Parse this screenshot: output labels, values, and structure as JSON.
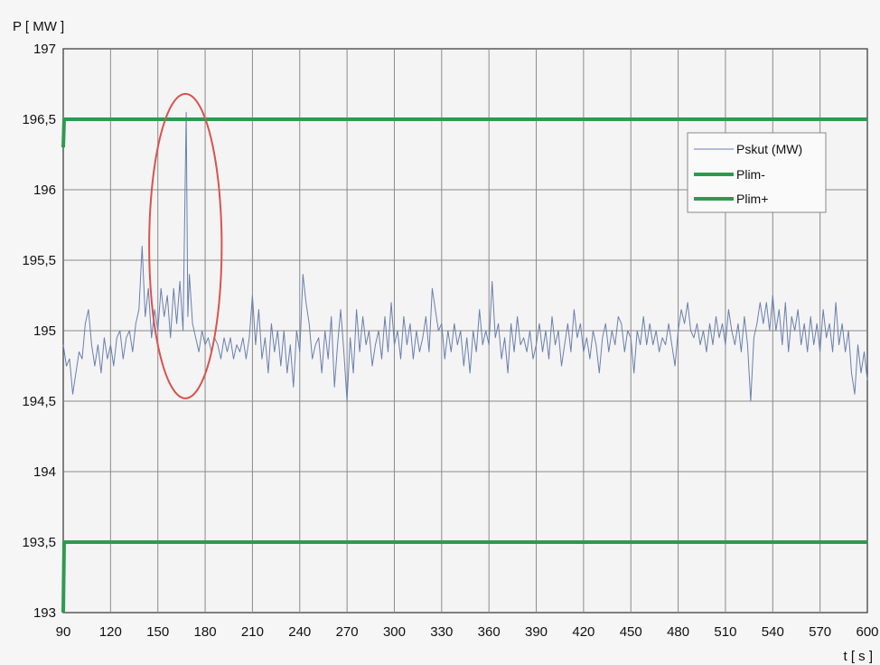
{
  "chart_data": {
    "type": "line",
    "xlabel": "t [ s ]",
    "ylabel": "P [ MW ]",
    "xlim": [
      90,
      600
    ],
    "ylim": [
      193,
      197
    ],
    "x_ticks": [
      90,
      120,
      150,
      180,
      210,
      240,
      270,
      300,
      330,
      360,
      390,
      420,
      450,
      480,
      510,
      540,
      570,
      600
    ],
    "x_tick_labels": [
      "90",
      "120",
      "150",
      "180",
      "210",
      "240",
      "270",
      "300",
      "330",
      "360",
      "390",
      "420",
      "450",
      "480",
      "510",
      "540",
      "570",
      "600"
    ],
    "y_ticks": [
      193,
      193.5,
      194,
      194.5,
      195,
      195.5,
      196,
      196.5,
      197
    ],
    "y_tick_labels": [
      "193",
      "193,5",
      "194",
      "194,5",
      "195",
      "195,5",
      "196",
      "196,5",
      "197"
    ],
    "grid": true,
    "legend_position": "top-right",
    "series": [
      {
        "name": "Pskut (MW)",
        "color": "#6a7fae",
        "points": [
          [
            90,
            194.9
          ],
          [
            92,
            194.75
          ],
          [
            94,
            194.8
          ],
          [
            96,
            194.55
          ],
          [
            98,
            194.7
          ],
          [
            100,
            194.85
          ],
          [
            102,
            194.8
          ],
          [
            104,
            195.05
          ],
          [
            106,
            195.15
          ],
          [
            108,
            194.9
          ],
          [
            110,
            194.75
          ],
          [
            112,
            194.9
          ],
          [
            114,
            194.7
          ],
          [
            116,
            194.95
          ],
          [
            118,
            194.8
          ],
          [
            120,
            194.9
          ],
          [
            122,
            194.75
          ],
          [
            124,
            194.95
          ],
          [
            126,
            195.0
          ],
          [
            128,
            194.8
          ],
          [
            130,
            194.95
          ],
          [
            132,
            195.0
          ],
          [
            134,
            194.85
          ],
          [
            136,
            195.05
          ],
          [
            138,
            195.15
          ],
          [
            140,
            195.6
          ],
          [
            142,
            195.1
          ],
          [
            144,
            195.3
          ],
          [
            146,
            194.95
          ],
          [
            148,
            195.15
          ],
          [
            150,
            195.0
          ],
          [
            152,
            195.3
          ],
          [
            154,
            195.1
          ],
          [
            156,
            195.25
          ],
          [
            158,
            194.95
          ],
          [
            160,
            195.3
          ],
          [
            162,
            195.05
          ],
          [
            164,
            195.35
          ],
          [
            166,
            195.0
          ],
          [
            168,
            196.55
          ],
          [
            169,
            195.1
          ],
          [
            170,
            195.4
          ],
          [
            172,
            195.05
          ],
          [
            174,
            194.95
          ],
          [
            176,
            194.85
          ],
          [
            178,
            195.0
          ],
          [
            180,
            194.9
          ],
          [
            182,
            194.95
          ],
          [
            184,
            194.85
          ],
          [
            186,
            194.95
          ],
          [
            188,
            194.9
          ],
          [
            190,
            194.8
          ],
          [
            192,
            194.95
          ],
          [
            194,
            194.85
          ],
          [
            196,
            194.95
          ],
          [
            198,
            194.8
          ],
          [
            200,
            194.9
          ],
          [
            202,
            194.85
          ],
          [
            204,
            194.95
          ],
          [
            206,
            194.8
          ],
          [
            208,
            194.95
          ],
          [
            210,
            195.25
          ],
          [
            212,
            194.9
          ],
          [
            214,
            195.15
          ],
          [
            216,
            194.8
          ],
          [
            218,
            194.95
          ],
          [
            220,
            194.7
          ],
          [
            222,
            195.05
          ],
          [
            224,
            194.85
          ],
          [
            226,
            195.0
          ],
          [
            228,
            194.75
          ],
          [
            230,
            195.0
          ],
          [
            232,
            194.7
          ],
          [
            234,
            194.9
          ],
          [
            236,
            194.6
          ],
          [
            238,
            195.0
          ],
          [
            240,
            194.85
          ],
          [
            242,
            195.4
          ],
          [
            244,
            195.2
          ],
          [
            246,
            195.05
          ],
          [
            248,
            194.8
          ],
          [
            250,
            194.9
          ],
          [
            252,
            194.95
          ],
          [
            254,
            194.7
          ],
          [
            256,
            195.0
          ],
          [
            258,
            194.8
          ],
          [
            260,
            195.1
          ],
          [
            262,
            194.6
          ],
          [
            264,
            194.9
          ],
          [
            266,
            195.15
          ],
          [
            268,
            194.85
          ],
          [
            270,
            194.5
          ],
          [
            272,
            194.95
          ],
          [
            274,
            194.7
          ],
          [
            276,
            195.15
          ],
          [
            278,
            194.85
          ],
          [
            280,
            195.1
          ],
          [
            282,
            194.9
          ],
          [
            284,
            195.0
          ],
          [
            286,
            194.75
          ],
          [
            288,
            194.9
          ],
          [
            290,
            195.0
          ],
          [
            292,
            194.8
          ],
          [
            294,
            195.1
          ],
          [
            296,
            194.85
          ],
          [
            298,
            195.2
          ],
          [
            300,
            194.9
          ],
          [
            302,
            195.0
          ],
          [
            304,
            194.8
          ],
          [
            306,
            195.1
          ],
          [
            308,
            194.9
          ],
          [
            310,
            195.05
          ],
          [
            312,
            194.8
          ],
          [
            314,
            195.0
          ],
          [
            316,
            194.85
          ],
          [
            318,
            194.95
          ],
          [
            320,
            195.1
          ],
          [
            322,
            194.85
          ],
          [
            324,
            195.3
          ],
          [
            326,
            195.15
          ],
          [
            328,
            195.0
          ],
          [
            330,
            195.05
          ],
          [
            332,
            194.8
          ],
          [
            334,
            195.0
          ],
          [
            336,
            194.85
          ],
          [
            338,
            195.05
          ],
          [
            340,
            194.9
          ],
          [
            342,
            195.0
          ],
          [
            344,
            194.75
          ],
          [
            346,
            194.95
          ],
          [
            348,
            194.7
          ],
          [
            350,
            195.0
          ],
          [
            352,
            194.85
          ],
          [
            354,
            195.15
          ],
          [
            356,
            194.9
          ],
          [
            358,
            195.0
          ],
          [
            360,
            194.9
          ],
          [
            362,
            195.35
          ],
          [
            364,
            194.95
          ],
          [
            366,
            195.05
          ],
          [
            368,
            194.8
          ],
          [
            370,
            194.95
          ],
          [
            372,
            194.7
          ],
          [
            374,
            195.05
          ],
          [
            376,
            194.85
          ],
          [
            378,
            195.1
          ],
          [
            380,
            194.9
          ],
          [
            382,
            194.95
          ],
          [
            384,
            194.85
          ],
          [
            386,
            195.0
          ],
          [
            388,
            194.8
          ],
          [
            390,
            194.9
          ],
          [
            392,
            195.05
          ],
          [
            394,
            194.85
          ],
          [
            396,
            195.0
          ],
          [
            398,
            194.8
          ],
          [
            400,
            195.1
          ],
          [
            402,
            194.9
          ],
          [
            404,
            195.0
          ],
          [
            406,
            194.75
          ],
          [
            408,
            194.9
          ],
          [
            410,
            195.05
          ],
          [
            412,
            194.85
          ],
          [
            414,
            195.15
          ],
          [
            416,
            194.95
          ],
          [
            418,
            195.05
          ],
          [
            420,
            194.85
          ],
          [
            422,
            194.95
          ],
          [
            424,
            194.8
          ],
          [
            426,
            195.0
          ],
          [
            428,
            194.9
          ],
          [
            430,
            194.7
          ],
          [
            432,
            194.95
          ],
          [
            434,
            195.05
          ],
          [
            436,
            194.85
          ],
          [
            438,
            195.0
          ],
          [
            440,
            194.9
          ],
          [
            442,
            195.1
          ],
          [
            444,
            195.05
          ],
          [
            446,
            194.85
          ],
          [
            448,
            195.0
          ],
          [
            450,
            194.95
          ],
          [
            452,
            194.7
          ],
          [
            454,
            195.0
          ],
          [
            456,
            194.9
          ],
          [
            458,
            195.1
          ],
          [
            460,
            194.9
          ],
          [
            462,
            195.05
          ],
          [
            464,
            194.9
          ],
          [
            466,
            195.0
          ],
          [
            468,
            194.85
          ],
          [
            470,
            194.95
          ],
          [
            472,
            194.9
          ],
          [
            474,
            195.05
          ],
          [
            476,
            194.9
          ],
          [
            478,
            194.75
          ],
          [
            480,
            195.0
          ],
          [
            482,
            195.15
          ],
          [
            484,
            195.05
          ],
          [
            486,
            195.2
          ],
          [
            488,
            195.0
          ],
          [
            490,
            194.95
          ],
          [
            492,
            195.05
          ],
          [
            494,
            194.9
          ],
          [
            496,
            195.0
          ],
          [
            498,
            194.85
          ],
          [
            500,
            195.05
          ],
          [
            502,
            194.9
          ],
          [
            504,
            195.1
          ],
          [
            506,
            194.95
          ],
          [
            508,
            195.05
          ],
          [
            510,
            194.9
          ],
          [
            512,
            195.15
          ],
          [
            514,
            195.0
          ],
          [
            516,
            194.9
          ],
          [
            518,
            195.05
          ],
          [
            520,
            194.85
          ],
          [
            522,
            195.1
          ],
          [
            524,
            194.9
          ],
          [
            526,
            194.5
          ],
          [
            528,
            194.95
          ],
          [
            530,
            195.05
          ],
          [
            532,
            195.2
          ],
          [
            534,
            195.05
          ],
          [
            536,
            195.2
          ],
          [
            538,
            195.0
          ],
          [
            540,
            195.25
          ],
          [
            542,
            195.0
          ],
          [
            544,
            195.15
          ],
          [
            546,
            194.9
          ],
          [
            548,
            195.2
          ],
          [
            550,
            194.85
          ],
          [
            552,
            195.1
          ],
          [
            554,
            195.0
          ],
          [
            556,
            195.15
          ],
          [
            558,
            194.9
          ],
          [
            560,
            195.05
          ],
          [
            562,
            194.85
          ],
          [
            564,
            195.1
          ],
          [
            566,
            194.9
          ],
          [
            568,
            195.05
          ],
          [
            570,
            194.85
          ],
          [
            572,
            195.15
          ],
          [
            574,
            194.95
          ],
          [
            576,
            195.05
          ],
          [
            578,
            194.85
          ],
          [
            580,
            195.2
          ],
          [
            582,
            194.9
          ],
          [
            584,
            195.05
          ],
          [
            586,
            194.85
          ],
          [
            588,
            195.0
          ],
          [
            590,
            194.7
          ],
          [
            592,
            194.55
          ],
          [
            594,
            194.9
          ],
          [
            596,
            194.7
          ],
          [
            598,
            194.85
          ],
          [
            600,
            194.65
          ]
        ]
      },
      {
        "name": "Plim-",
        "color": "#2e9a4e",
        "points": [
          [
            90,
            193
          ],
          [
            90.6,
            193.5
          ],
          [
            600,
            193.5
          ]
        ]
      },
      {
        "name": "Plim+",
        "color": "#2e9a4e",
        "points": [
          [
            90,
            196.3
          ],
          [
            90.6,
            196.5
          ],
          [
            600,
            196.5
          ]
        ]
      }
    ],
    "annotation": {
      "shape": "ellipse",
      "color": "#d9534f",
      "center": [
        167.5,
        195.6
      ],
      "radius_x_data": 23,
      "radius_y_data": 1.08
    }
  }
}
